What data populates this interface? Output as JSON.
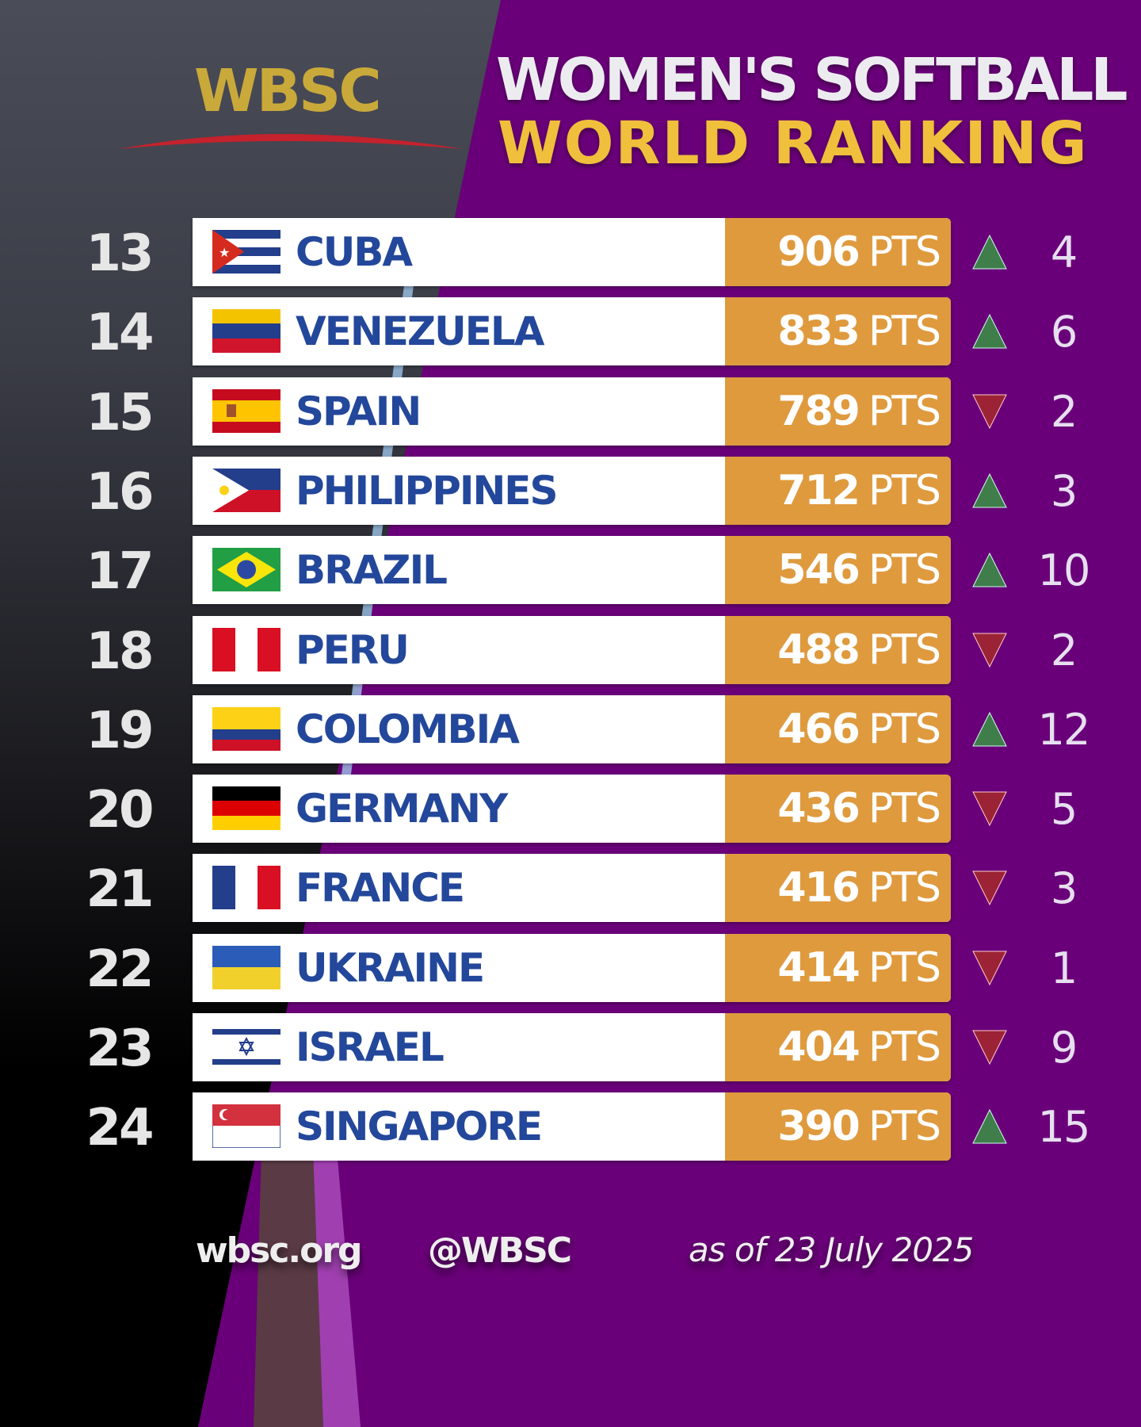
{
  "logo": "WBSC",
  "title_line1": "WOMEN'S SOFTBALL",
  "title_line2": "WORLD RANKING",
  "pts_label": "PTS",
  "colors": {
    "purple": "#6a0079",
    "orange": "#df9a3e",
    "up": "#3f7d4a",
    "down": "#9b2335",
    "name": "#23479a"
  },
  "rows": [
    {
      "rank": "13",
      "country": "CUBA",
      "flag": "cuba",
      "points": "906",
      "dir": "up",
      "change": "4"
    },
    {
      "rank": "14",
      "country": "VENEZUELA",
      "flag": "venezuela",
      "points": "833",
      "dir": "up",
      "change": "6"
    },
    {
      "rank": "15",
      "country": "SPAIN",
      "flag": "spain",
      "points": "789",
      "dir": "down",
      "change": "2"
    },
    {
      "rank": "16",
      "country": "PHILIPPINES",
      "flag": "philippines",
      "points": "712",
      "dir": "up",
      "change": "3"
    },
    {
      "rank": "17",
      "country": "BRAZIL",
      "flag": "brazil",
      "points": "546",
      "dir": "up",
      "change": "10"
    },
    {
      "rank": "18",
      "country": "PERU",
      "flag": "peru",
      "points": "488",
      "dir": "down",
      "change": "2"
    },
    {
      "rank": "19",
      "country": "COLOMBIA",
      "flag": "colombia",
      "points": "466",
      "dir": "up",
      "change": "12"
    },
    {
      "rank": "20",
      "country": "GERMANY",
      "flag": "germany",
      "points": "436",
      "dir": "down",
      "change": "5"
    },
    {
      "rank": "21",
      "country": "FRANCE",
      "flag": "france",
      "points": "416",
      "dir": "down",
      "change": "3"
    },
    {
      "rank": "22",
      "country": "UKRAINE",
      "flag": "ukraine",
      "points": "414",
      "dir": "down",
      "change": "1"
    },
    {
      "rank": "23",
      "country": "ISRAEL",
      "flag": "israel",
      "points": "404",
      "dir": "down",
      "change": "9"
    },
    {
      "rank": "24",
      "country": "SINGAPORE",
      "flag": "singapore",
      "points": "390",
      "dir": "up",
      "change": "15"
    }
  ],
  "footer": {
    "website": "wbsc.org",
    "handle": "@WBSC",
    "date": "as of 23 July 2025"
  }
}
